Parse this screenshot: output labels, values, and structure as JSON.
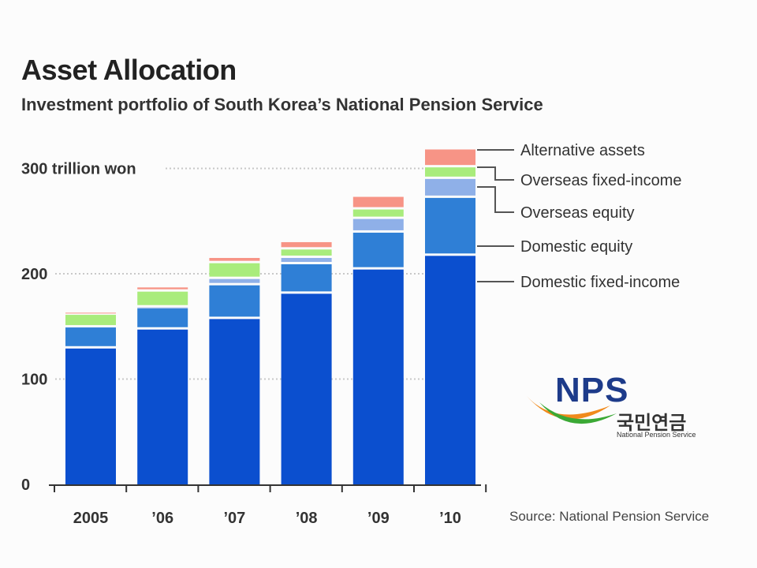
{
  "header": {
    "title": "Asset Allocation",
    "subtitle": "Investment portfolio of South Korea’s National Pension Service"
  },
  "source": "Source: National Pension Service",
  "logo": {
    "brand": "NPS",
    "korean_name": "국민연금",
    "english_name": "National Pension Service"
  },
  "colors": {
    "domestic_fixed": "#0b4fcf",
    "domestic_equity": "#2f7fd6",
    "overseas_equity": "#8fb0e8",
    "overseas_fixed": "#a9ec7c",
    "alternative": "#f79486"
  },
  "chart_data": {
    "type": "bar",
    "stacked": true,
    "categories": [
      "2005",
      "’06",
      "’07",
      "’08",
      "’09",
      "’10"
    ],
    "y_tick_labels": [
      "0",
      "100",
      "200",
      "300 trillion won"
    ],
    "y_ticks": [
      0,
      100,
      200,
      300
    ],
    "ylim": [
      0,
      330
    ],
    "series": [
      {
        "name": "Domestic fixed-income",
        "values": [
          129,
          147,
          157,
          181,
          204,
          217
        ]
      },
      {
        "name": "Domestic equity",
        "values": [
          20,
          20,
          32,
          28,
          35,
          55
        ]
      },
      {
        "name": "Overseas equity",
        "values": [
          0,
          1,
          6,
          6,
          13,
          18
        ]
      },
      {
        "name": "Overseas fixed-income",
        "values": [
          12,
          15,
          15,
          8,
          9,
          11
        ]
      },
      {
        "name": "Alternative assets",
        "values": [
          2,
          4,
          5,
          7,
          12,
          17
        ]
      }
    ],
    "legend_position": "right"
  }
}
